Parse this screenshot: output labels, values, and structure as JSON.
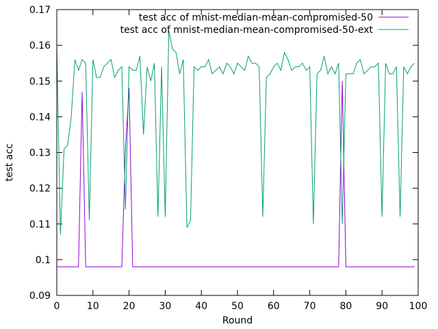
{
  "chart_data": {
    "type": "line",
    "xlabel": "Round",
    "ylabel": "test acc",
    "xlim": [
      0,
      100
    ],
    "ylim": [
      0.09,
      0.17
    ],
    "xticks": [
      0,
      10,
      20,
      30,
      40,
      50,
      60,
      70,
      80,
      90,
      100
    ],
    "yticks": [
      0.09,
      0.1,
      0.11,
      0.12,
      0.13,
      0.14,
      0.15,
      0.16,
      0.17
    ],
    "legend_position": "top-right",
    "grid": false,
    "series": [
      {
        "name": "test acc of mnist-median-mean-compromised-50",
        "color": "#9400d3",
        "x": [
          0,
          1,
          2,
          3,
          4,
          5,
          6,
          7,
          8,
          9,
          10,
          11,
          12,
          13,
          14,
          15,
          16,
          17,
          18,
          19,
          20,
          21,
          22,
          23,
          24,
          25,
          26,
          27,
          28,
          29,
          30,
          31,
          32,
          33,
          34,
          35,
          36,
          37,
          38,
          39,
          40,
          41,
          42,
          43,
          44,
          45,
          46,
          47,
          48,
          49,
          50,
          51,
          52,
          53,
          54,
          55,
          56,
          57,
          58,
          59,
          60,
          61,
          62,
          63,
          64,
          65,
          66,
          67,
          68,
          69,
          70,
          71,
          72,
          73,
          74,
          75,
          76,
          77,
          78,
          79,
          80,
          81,
          82,
          83,
          84,
          85,
          86,
          87,
          88,
          89,
          90,
          91,
          92,
          93,
          94,
          95,
          96,
          97,
          98,
          99
        ],
        "y": [
          0.098,
          0.098,
          0.098,
          0.098,
          0.098,
          0.098,
          0.098,
          0.147,
          0.098,
          0.098,
          0.098,
          0.098,
          0.098,
          0.098,
          0.098,
          0.098,
          0.098,
          0.098,
          0.098,
          0.131,
          0.148,
          0.098,
          0.098,
          0.098,
          0.098,
          0.098,
          0.098,
          0.098,
          0.098,
          0.098,
          0.098,
          0.098,
          0.098,
          0.098,
          0.098,
          0.098,
          0.098,
          0.098,
          0.098,
          0.098,
          0.098,
          0.098,
          0.098,
          0.098,
          0.098,
          0.098,
          0.098,
          0.098,
          0.098,
          0.098,
          0.098,
          0.098,
          0.098,
          0.098,
          0.098,
          0.098,
          0.098,
          0.098,
          0.098,
          0.098,
          0.098,
          0.098,
          0.098,
          0.098,
          0.098,
          0.098,
          0.098,
          0.098,
          0.098,
          0.098,
          0.098,
          0.098,
          0.098,
          0.098,
          0.098,
          0.098,
          0.098,
          0.098,
          0.098,
          0.15,
          0.098,
          0.098,
          0.098,
          0.098,
          0.098,
          0.098,
          0.098,
          0.098,
          0.098,
          0.098,
          0.098,
          0.098,
          0.098,
          0.098,
          0.098,
          0.098,
          0.098,
          0.098,
          0.098,
          0.098
        ]
      },
      {
        "name": "test acc of mnist-median-mean-compromised-50-ext",
        "color": "#009e73",
        "x": [
          0,
          1,
          2,
          3,
          4,
          5,
          6,
          7,
          8,
          9,
          10,
          11,
          12,
          13,
          14,
          15,
          16,
          17,
          18,
          19,
          20,
          21,
          22,
          23,
          24,
          25,
          26,
          27,
          28,
          29,
          30,
          31,
          32,
          33,
          34,
          35,
          36,
          37,
          38,
          39,
          40,
          41,
          42,
          43,
          44,
          45,
          46,
          47,
          48,
          49,
          50,
          51,
          52,
          53,
          54,
          55,
          56,
          57,
          58,
          59,
          60,
          61,
          62,
          63,
          64,
          65,
          66,
          67,
          68,
          69,
          70,
          71,
          72,
          73,
          74,
          75,
          76,
          77,
          78,
          79,
          80,
          81,
          82,
          83,
          84,
          85,
          86,
          87,
          88,
          89,
          90,
          91,
          92,
          93,
          94,
          95,
          96,
          97,
          98,
          99
        ],
        "y": [
          0.16,
          0.107,
          0.131,
          0.132,
          0.14,
          0.156,
          0.153,
          0.156,
          0.155,
          0.111,
          0.156,
          0.151,
          0.151,
          0.154,
          0.155,
          0.156,
          0.151,
          0.153,
          0.154,
          0.114,
          0.154,
          0.153,
          0.153,
          0.157,
          0.135,
          0.154,
          0.15,
          0.155,
          0.112,
          0.154,
          0.112,
          0.164,
          0.159,
          0.158,
          0.152,
          0.156,
          0.109,
          0.111,
          0.154,
          0.153,
          0.154,
          0.154,
          0.156,
          0.152,
          0.153,
          0.154,
          0.152,
          0.155,
          0.154,
          0.152,
          0.155,
          0.154,
          0.153,
          0.157,
          0.155,
          0.155,
          0.154,
          0.112,
          0.151,
          0.152,
          0.154,
          0.155,
          0.153,
          0.158,
          0.156,
          0.153,
          0.154,
          0.154,
          0.155,
          0.153,
          0.154,
          0.11,
          0.152,
          0.153,
          0.157,
          0.152,
          0.154,
          0.152,
          0.155,
          0.11,
          0.152,
          0.152,
          0.152,
          0.155,
          0.156,
          0.152,
          0.153,
          0.154,
          0.154,
          0.155,
          0.112,
          0.155,
          0.152,
          0.152,
          0.154,
          0.112,
          0.154,
          0.152,
          0.154,
          0.155
        ]
      }
    ]
  }
}
